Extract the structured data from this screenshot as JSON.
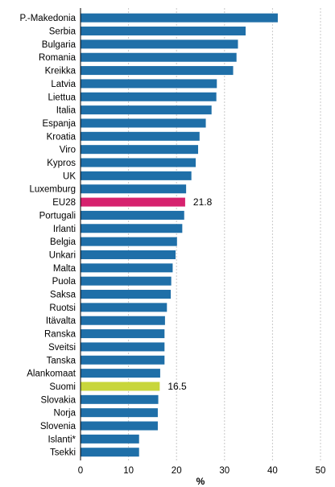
{
  "chart_data": {
    "type": "bar",
    "orientation": "horizontal",
    "categories": [
      "P.-Makedonia",
      "Serbia",
      "Bulgaria",
      "Romania",
      "Kreikka",
      "Latvia",
      "Liettua",
      "Italia",
      "Espanja",
      "Kroatia",
      "Viro",
      "Kypros",
      "UK",
      "Luxemburg",
      "EU28",
      "Portugali",
      "Irlanti",
      "Belgia",
      "Unkari",
      "Malta",
      "Puola",
      "Saksa",
      "Ruotsi",
      "Itävalta",
      "Ranska",
      "Sveitsi",
      "Tanska",
      "Alankomaat",
      "Suomi",
      "Slovakia",
      "Norja",
      "Slovenia",
      "Islanti*",
      "Tsekki"
    ],
    "values": [
      41.1,
      34.4,
      32.8,
      32.5,
      31.8,
      28.4,
      28.3,
      27.3,
      26.1,
      24.8,
      24.5,
      24.0,
      23.1,
      22.0,
      21.8,
      21.6,
      21.2,
      20.1,
      19.8,
      19.2,
      18.9,
      18.8,
      18.0,
      17.6,
      17.5,
      17.5,
      17.5,
      16.6,
      16.5,
      16.2,
      16.1,
      16.1,
      12.2,
      12.2
    ],
    "highlights": {
      "EU28": {
        "color": "#d6226e",
        "label": "21.8"
      },
      "Suomi": {
        "color": "#c8d63b",
        "label": "16.5"
      }
    },
    "bar_color": "#1f6fa8",
    "xlabel": "%",
    "xlim": [
      0,
      50
    ],
    "xticks": [
      "0",
      "10",
      "20",
      "30",
      "40",
      "50"
    ],
    "grid": true
  }
}
